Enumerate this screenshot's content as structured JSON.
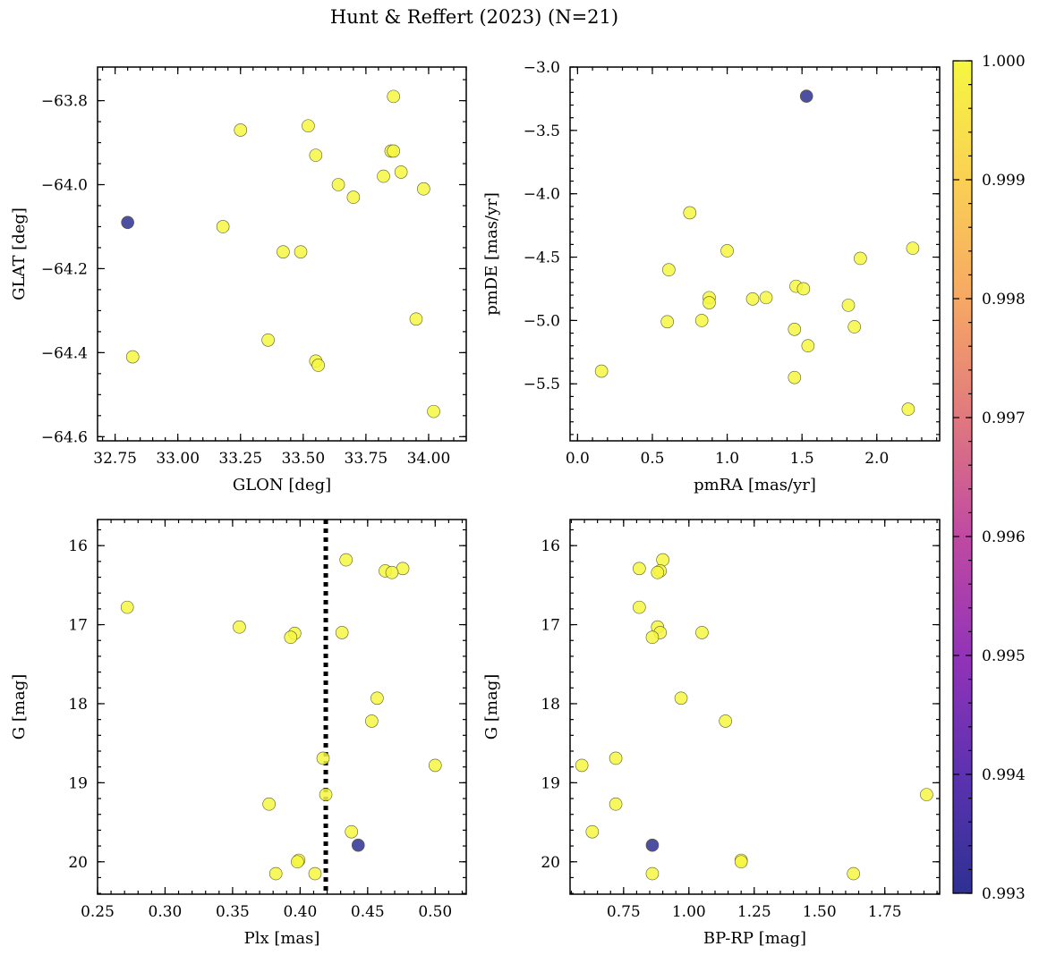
{
  "chart_data": {
    "title": "Hunt & Reffert (2023) (N=21)",
    "colorbar": {
      "colormap": "plasma",
      "range": [
        0.993,
        1.0
      ],
      "tick_values": [
        0.993,
        0.994,
        0.995,
        0.996,
        0.997,
        0.998,
        0.999,
        1.0
      ],
      "tick_labels": [
        "0.993",
        "0.994",
        "0.995",
        "0.996",
        "0.997",
        "0.998",
        "0.999",
        "1.000"
      ]
    },
    "panels": [
      {
        "type": "scatter",
        "xlabel": "GLON [deg]",
        "ylabel": "GLAT [deg]",
        "xlim": [
          32.68,
          34.15
        ],
        "ylim": [
          -64.61,
          -63.72
        ],
        "xticks": [
          32.75,
          33.0,
          33.25,
          33.5,
          33.75,
          34.0
        ],
        "xtick_labels": [
          "32.75",
          "33.00",
          "33.25",
          "33.50",
          "33.75",
          "34.00"
        ],
        "xminor": 0.05,
        "yticks": [
          -63.8,
          -64.0,
          -64.2,
          -64.4,
          -64.6
        ],
        "ytick_labels": [
          "−63.8",
          "−64.0",
          "−64.2",
          "−64.4",
          "−64.6"
        ],
        "yminor": 0.05,
        "x": [
          33.86,
          33.52,
          33.25,
          33.55,
          33.85,
          33.86,
          33.89,
          33.64,
          33.82,
          33.7,
          33.98,
          32.8,
          33.18,
          33.42,
          33.49,
          33.95,
          33.36,
          32.82,
          33.55,
          33.56,
          34.02
        ],
        "y": [
          -63.79,
          -63.86,
          -63.87,
          -63.93,
          -63.92,
          -63.92,
          -63.97,
          -64.0,
          -63.98,
          -64.03,
          -64.01,
          -64.09,
          -64.1,
          -64.16,
          -64.16,
          -64.32,
          -64.37,
          -64.41,
          -64.42,
          -64.43,
          -64.54
        ],
        "c": [
          1.0,
          1.0,
          1.0,
          1.0,
          1.0,
          1.0,
          1.0,
          1.0,
          1.0,
          1.0,
          1.0,
          0.993,
          1.0,
          1.0,
          1.0,
          1.0,
          1.0,
          1.0,
          1.0,
          1.0,
          1.0
        ]
      },
      {
        "type": "scatter",
        "xlabel": "pmRA [mas/yr]",
        "ylabel": "pmDE [mas/yr]",
        "xlim": [
          -0.05,
          2.42
        ],
        "ylim": [
          -5.95,
          -3.0
        ],
        "xticks": [
          0.0,
          0.5,
          1.0,
          1.5,
          2.0
        ],
        "xtick_labels": [
          "0.0",
          "0.5",
          "1.0",
          "1.5",
          "2.0"
        ],
        "xminor": 0.1,
        "yticks": [
          -3.0,
          -3.5,
          -4.0,
          -4.5,
          -5.0,
          -5.5
        ],
        "ytick_labels": [
          "−3.0",
          "−3.5",
          "−4.0",
          "−4.5",
          "−5.0",
          "−5.5"
        ],
        "yminor": 0.1,
        "x": [
          1.53,
          0.75,
          1.0,
          2.24,
          1.89,
          0.61,
          1.46,
          1.51,
          0.88,
          0.88,
          1.17,
          1.26,
          1.81,
          0.6,
          0.83,
          1.85,
          1.45,
          1.54,
          0.16,
          1.45,
          2.21
        ],
        "y": [
          -3.23,
          -4.15,
          -4.45,
          -4.43,
          -4.51,
          -4.6,
          -4.73,
          -4.75,
          -4.82,
          -4.86,
          -4.83,
          -4.82,
          -4.88,
          -5.01,
          -5.0,
          -5.05,
          -5.07,
          -5.2,
          -5.4,
          -5.45,
          -5.7
        ],
        "c": [
          0.993,
          1.0,
          1.0,
          1.0,
          1.0,
          1.0,
          1.0,
          1.0,
          1.0,
          1.0,
          1.0,
          1.0,
          1.0,
          1.0,
          1.0,
          1.0,
          1.0,
          1.0,
          1.0,
          1.0,
          1.0
        ]
      },
      {
        "type": "scatter",
        "xlabel": "Plx [mas]",
        "ylabel": "G [mag]",
        "xlim": [
          0.25,
          0.523
        ],
        "ylim": [
          20.41,
          15.67
        ],
        "xticks": [
          0.25,
          0.3,
          0.35,
          0.4,
          0.45,
          0.5
        ],
        "xtick_labels": [
          "0.25",
          "0.30",
          "0.35",
          "0.40",
          "0.45",
          "0.50"
        ],
        "xminor": 0.01,
        "yticks": [
          16,
          17,
          18,
          19,
          20
        ],
        "ytick_labels": [
          "16",
          "17",
          "18",
          "19",
          "20"
        ],
        "yminor": 0.2,
        "vline": 0.419,
        "x": [
          0.434,
          0.476,
          0.463,
          0.468,
          0.272,
          0.355,
          0.396,
          0.393,
          0.431,
          0.457,
          0.453,
          0.417,
          0.5,
          0.419,
          0.377,
          0.399,
          0.398,
          0.438,
          0.443,
          0.382,
          0.411
        ],
        "y": [
          16.18,
          16.29,
          16.32,
          16.34,
          16.78,
          17.03,
          17.11,
          17.16,
          17.1,
          17.93,
          18.22,
          18.69,
          18.78,
          19.15,
          19.27,
          19.98,
          20.0,
          19.62,
          19.79,
          20.15,
          20.15
        ],
        "c": [
          1.0,
          1.0,
          1.0,
          1.0,
          1.0,
          1.0,
          1.0,
          1.0,
          1.0,
          1.0,
          1.0,
          1.0,
          1.0,
          1.0,
          1.0,
          1.0,
          1.0,
          1.0,
          0.993,
          1.0,
          1.0
        ]
      },
      {
        "type": "scatter",
        "xlabel": "BP-RP [mag]",
        "ylabel": "G [mag]",
        "xlim": [
          0.545,
          1.96
        ],
        "ylim": [
          20.41,
          15.67
        ],
        "xticks": [
          0.75,
          1.0,
          1.25,
          1.5,
          1.75
        ],
        "xtick_labels": [
          "0.75",
          "1.00",
          "1.25",
          "1.50",
          "1.75"
        ],
        "xminor": 0.05,
        "yticks": [
          16,
          17,
          18,
          19,
          20
        ],
        "ytick_labels": [
          "16",
          "17",
          "18",
          "19",
          "20"
        ],
        "yminor": 0.2,
        "x": [
          0.9,
          0.81,
          0.89,
          0.88,
          0.81,
          0.88,
          0.89,
          0.86,
          1.05,
          0.97,
          1.14,
          0.72,
          0.59,
          1.91,
          0.72,
          1.2,
          1.2,
          0.63,
          0.86,
          0.86,
          1.63
        ],
        "y": [
          16.18,
          16.29,
          16.32,
          16.34,
          16.78,
          17.03,
          17.1,
          17.16,
          17.1,
          17.93,
          18.22,
          18.69,
          18.78,
          19.15,
          19.27,
          19.98,
          20.0,
          19.62,
          19.79,
          20.15,
          20.15
        ],
        "c": [
          1.0,
          1.0,
          1.0,
          1.0,
          1.0,
          1.0,
          1.0,
          1.0,
          1.0,
          1.0,
          1.0,
          1.0,
          1.0,
          1.0,
          1.0,
          1.0,
          1.0,
          1.0,
          0.993,
          1.0,
          1.0
        ]
      }
    ]
  }
}
